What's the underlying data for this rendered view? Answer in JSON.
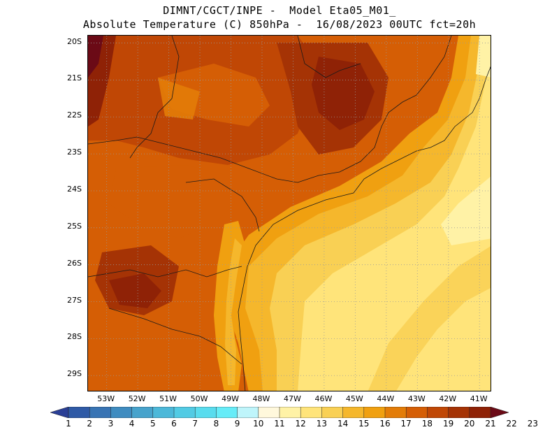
{
  "title_line1": "DIMNT/CGCT/INPE -  Model Eta05_M01_",
  "title_line2": "Absolute Temperature (C) 850hPa -  16/08/2023 00UTC fct=20h",
  "lat_labels": [
    "20S",
    "21S",
    "22S",
    "23S",
    "24S",
    "25S",
    "26S",
    "27S",
    "28S",
    "29S"
  ],
  "lon_labels": [
    "53W",
    "52W",
    "51W",
    "50W",
    "49W",
    "48W",
    "47W",
    "46W",
    "45W",
    "44W",
    "43W",
    "42W",
    "41W"
  ],
  "colorbar": {
    "labels": [
      "1",
      "2",
      "3",
      "4",
      "5",
      "6",
      "7",
      "8",
      "9",
      "10",
      "11",
      "12",
      "13",
      "14",
      "15",
      "16",
      "17",
      "18",
      "19",
      "20",
      "21",
      "22",
      "23"
    ],
    "colors": [
      "#2a3f96",
      "#2f5aa6",
      "#3874b4",
      "#3f8cc0",
      "#47a3cc",
      "#4cb8d9",
      "#52cbe4",
      "#59dcee",
      "#66ecf8",
      "#bff5fb",
      "#fff8dc",
      "#fff2a6",
      "#ffe47a",
      "#f9d054",
      "#f5b72c",
      "#f0a010",
      "#e37c08",
      "#d55e05",
      "#c04705",
      "#a53305",
      "#8f2206",
      "#6b0a16"
    ]
  },
  "field": {
    "extent": {
      "lon_min": -53.6,
      "lon_max": -40.6,
      "lat_min": -29.45,
      "lat_max": -19.8
    }
  }
}
